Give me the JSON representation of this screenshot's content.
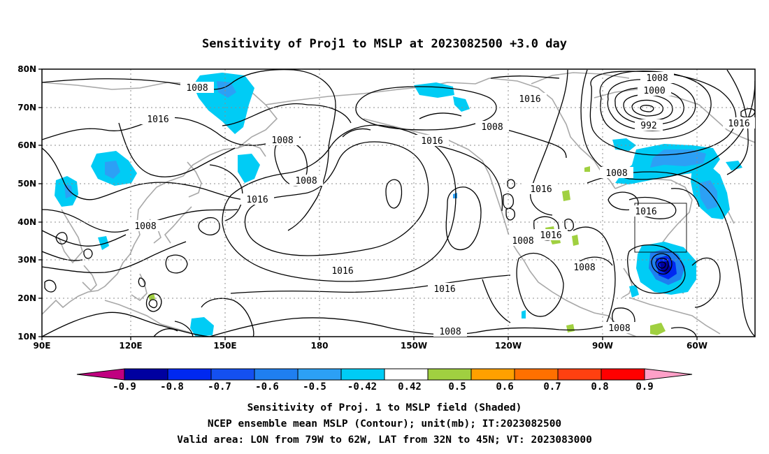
{
  "title": "Sensitivity of Proj1 to MSLP at 2023082500 +3.0 day",
  "map": {
    "lat_labels": [
      "80N",
      "70N",
      "60N",
      "50N",
      "40N",
      "30N",
      "20N",
      "10N"
    ],
    "lon_labels": [
      "90E",
      "120E",
      "150E",
      "180",
      "150W",
      "120W",
      "90W",
      "60W"
    ],
    "contour_labels": [
      "1008",
      "1016",
      "1016",
      "1008",
      "1008",
      "1016",
      "1008",
      "1016",
      "1008",
      "1000",
      "992",
      "1016",
      "1008",
      "1016",
      "1016",
      "1008",
      "1008",
      "1016",
      "1016",
      "1008",
      "1016",
      "1008",
      "1008",
      "1008"
    ]
  },
  "colorbar": {
    "labels": [
      "-0.9",
      "-0.8",
      "-0.7",
      "-0.6",
      "-0.5",
      "-0.42",
      "0.42",
      "0.5",
      "0.6",
      "0.7",
      "0.8",
      "0.9"
    ],
    "colors": [
      "#0000a0",
      "#0028f0",
      "#1450f0",
      "#1f7ff0",
      "#2ca0f5",
      "#00ccf5",
      "#ffffff",
      "#a0d040",
      "#ffa000",
      "#ff7000",
      "#ff4010",
      "#ff0000"
    ],
    "low_end_color": "#c00080",
    "high_end_color": "#ffa0c8"
  },
  "caption": {
    "line1": "Sensitivity of Proj. 1 to MSLP field (Shaded)",
    "line2": "NCEP ensemble mean MSLP (Contour); unit(mb); IT:2023082500",
    "line3": "Valid area: LON from 79W to 62W, LAT from 32N to 45N; VT: 2023083000"
  }
}
